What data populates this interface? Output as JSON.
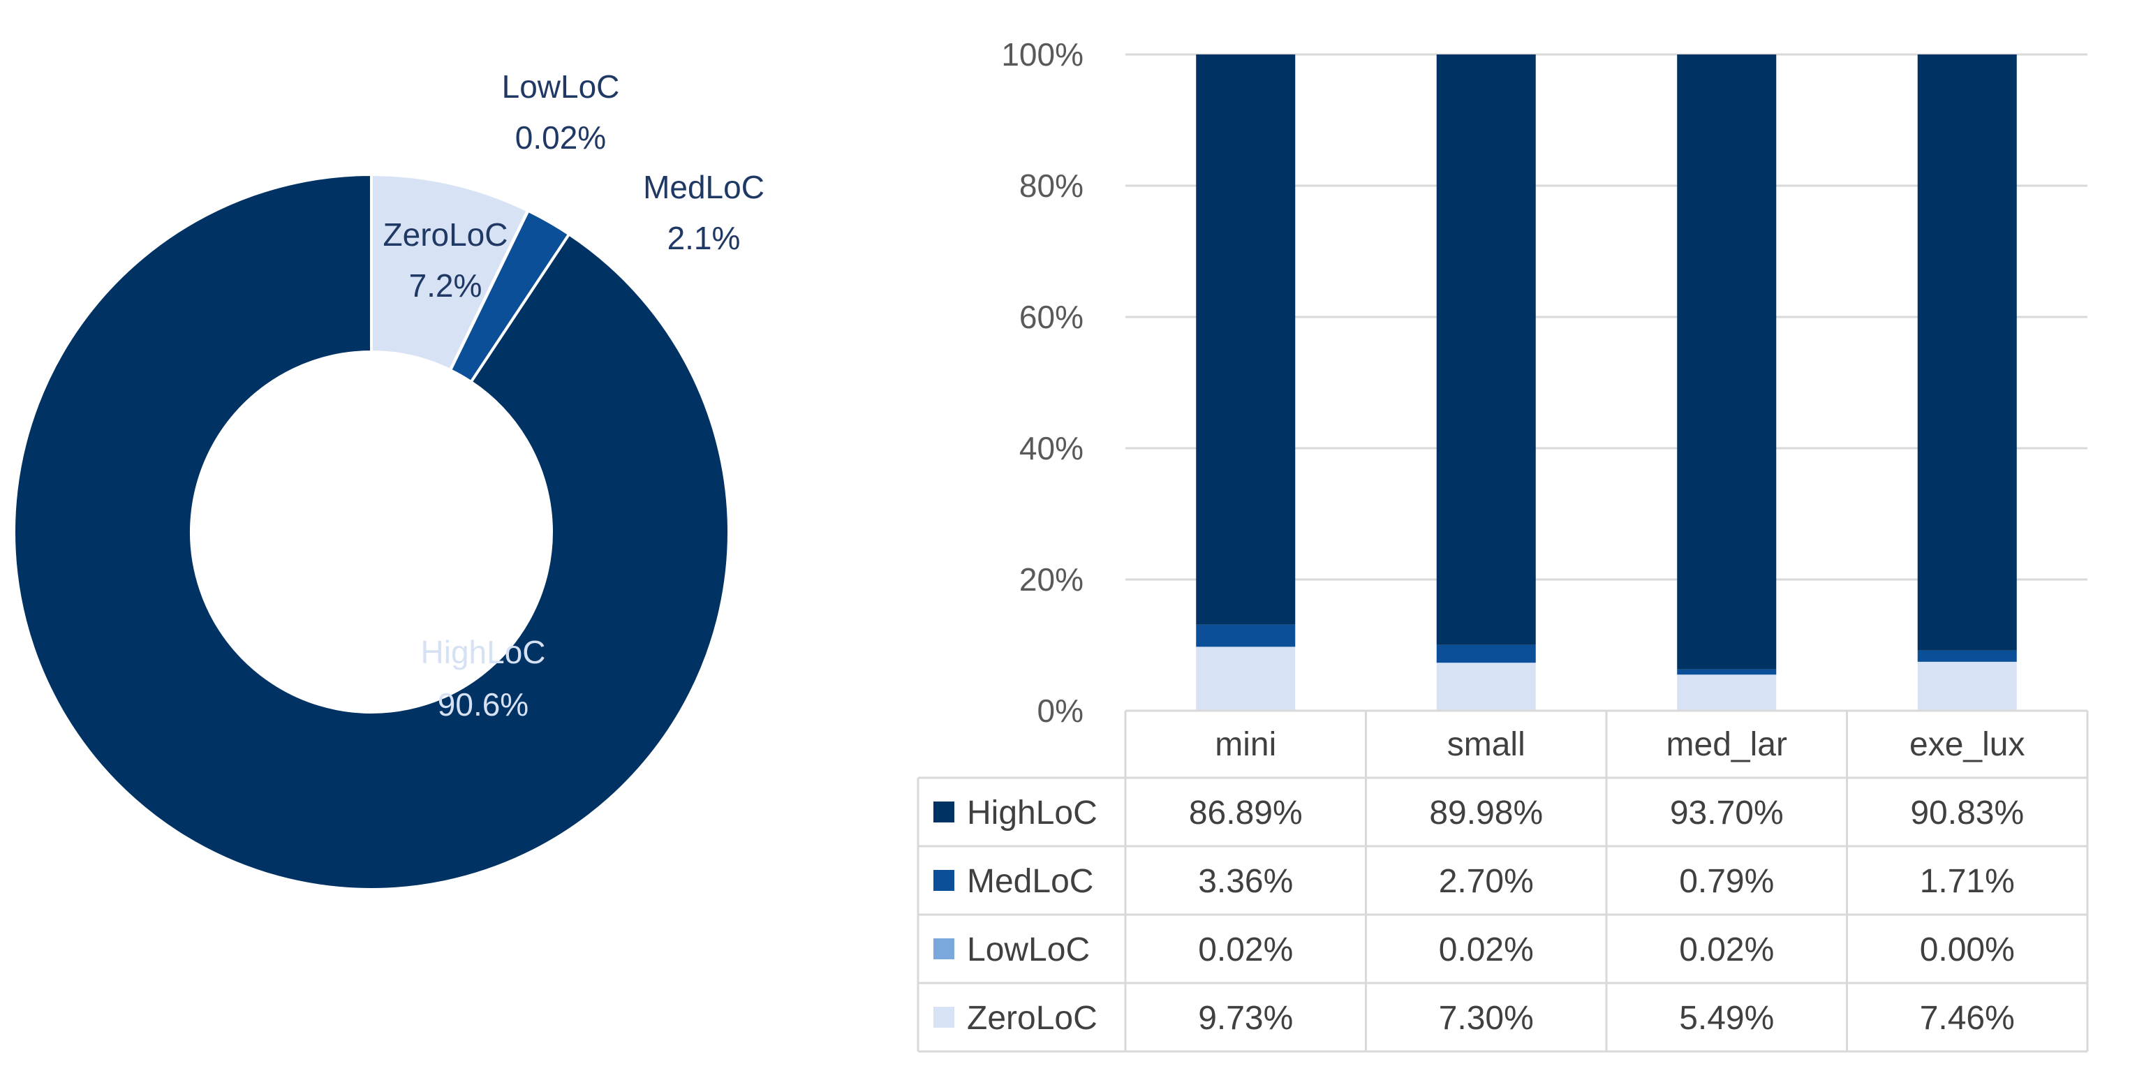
{
  "colors": {
    "HighLoC": "#003263",
    "MedLoC": "#0a4f97",
    "LowLoC": "#7aa7dc",
    "ZeroLoC": "#d7e3f4",
    "grid": "#d9d9d9",
    "pie_label": "#1f3864",
    "pie_label_light": "#d6e1f3"
  },
  "chart_data": [
    {
      "type": "pie",
      "variant": "donut",
      "title": "",
      "slices": [
        {
          "label": "ZeroLoC",
          "value": 7.2,
          "display": "7.2%"
        },
        {
          "label": "LowLoC",
          "value": 0.02,
          "display": "0.02%"
        },
        {
          "label": "MedLoC",
          "value": 2.1,
          "display": "2.1%"
        },
        {
          "label": "HighLoC",
          "value": 90.6,
          "display": "90.6%"
        }
      ]
    },
    {
      "type": "bar",
      "stacked": true,
      "percent_stacked": true,
      "title": "",
      "xlabel": "",
      "ylabel": "",
      "ylim": [
        0,
        100
      ],
      "yticks": [
        "0%",
        "20%",
        "40%",
        "60%",
        "80%",
        "100%"
      ],
      "grid": true,
      "legend": "data-table",
      "categories": [
        "mini",
        "small",
        "med_lar",
        "exe_lux"
      ],
      "series": [
        {
          "name": "HighLoC",
          "values": [
            86.89,
            89.98,
            93.7,
            90.83
          ],
          "labels": [
            "86.89%",
            "89.98%",
            "93.70%",
            "90.83%"
          ]
        },
        {
          "name": "MedLoC",
          "values": [
            3.36,
            2.7,
            0.79,
            1.71
          ],
          "labels": [
            "3.36%",
            "2.70%",
            "0.79%",
            "1.71%"
          ]
        },
        {
          "name": "LowLoC",
          "values": [
            0.02,
            0.02,
            0.02,
            0.0
          ],
          "labels": [
            "0.02%",
            "0.02%",
            "0.02%",
            "0.00%"
          ]
        },
        {
          "name": "ZeroLoC",
          "values": [
            9.73,
            7.3,
            5.49,
            7.46
          ],
          "labels": [
            "9.73%",
            "7.30%",
            "5.49%",
            "7.46%"
          ]
        }
      ]
    }
  ]
}
